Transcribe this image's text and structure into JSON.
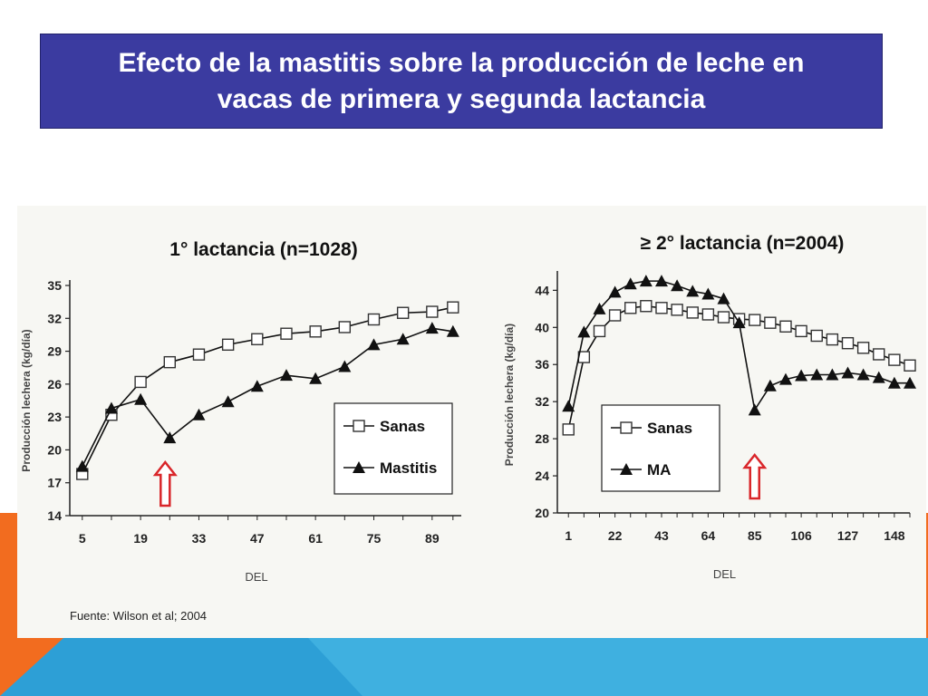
{
  "slide": {
    "title": "Efecto de la mastitis sobre la producción de leche en\nvacas de primera y segunda lactancia",
    "colors": {
      "title_bg": "#3b3ba0",
      "accent_orange": "#f26c1f",
      "accent_blue": "#2d9fd6",
      "arrow_red": "#d9262a"
    }
  },
  "source": "Fuente: Wilson et al; 2004",
  "chart_data": [
    {
      "type": "line",
      "title": "1° lactancia (n=1028)",
      "ylabel": "Producción lechera (kg/día)",
      "xlabel": "DEL",
      "ylim": [
        14,
        35
      ],
      "yticks": [
        14,
        17,
        20,
        23,
        26,
        29,
        32,
        35
      ],
      "xticks": [
        5,
        19,
        33,
        47,
        61,
        75,
        89
      ],
      "xlim": [
        2,
        96
      ],
      "legend_position": "bottom-right",
      "annotation": "red arrow at DEL 26",
      "series": [
        {
          "name": "Sanas",
          "marker": "square",
          "x": [
            5,
            12,
            19,
            26,
            33,
            40,
            47,
            54,
            61,
            68,
            75,
            82,
            89,
            94
          ],
          "y": [
            17.8,
            23.2,
            26.2,
            28,
            28.7,
            29.6,
            30.1,
            30.6,
            30.8,
            31.2,
            31.9,
            32.5,
            32.6,
            33
          ]
        },
        {
          "name": "Mastitis",
          "marker": "triangle",
          "x": [
            5,
            12,
            19,
            26,
            33,
            40,
            47,
            54,
            61,
            68,
            75,
            82,
            89,
            94
          ],
          "y": [
            18.5,
            23.8,
            24.6,
            21.1,
            23.2,
            24.4,
            25.8,
            26.8,
            26.5,
            27.6,
            29.6,
            30.1,
            31.1,
            30.8
          ]
        }
      ]
    },
    {
      "type": "line",
      "title": "≥ 2° lactancia (n=2004)",
      "ylabel": "Producción lechera (kg/día)",
      "xlabel": "DEL",
      "ylim": [
        20,
        45.5
      ],
      "yticks": [
        20,
        24,
        28,
        32,
        36,
        40,
        44
      ],
      "xticks": [
        1,
        22,
        43,
        64,
        85,
        106,
        127,
        148
      ],
      "xlim": [
        -4,
        155
      ],
      "legend_position": "bottom-left",
      "annotation": "red arrow at DEL 85",
      "series": [
        {
          "name": "Sanas",
          "marker": "square",
          "x": [
            1,
            8,
            15,
            22,
            29,
            36,
            43,
            50,
            57,
            64,
            71,
            78,
            85,
            92,
            99,
            106,
            113,
            120,
            127,
            134,
            141,
            148,
            155
          ],
          "y": [
            29,
            36.8,
            39.6,
            41.3,
            42.1,
            42.3,
            42.1,
            41.9,
            41.6,
            41.4,
            41.1,
            40.9,
            40.8,
            40.5,
            40.1,
            39.6,
            39.1,
            38.7,
            38.3,
            37.8,
            37.1,
            36.5,
            35.9
          ]
        },
        {
          "name": "MA",
          "marker": "triangle",
          "x": [
            1,
            8,
            15,
            22,
            29,
            36,
            43,
            50,
            57,
            64,
            71,
            78,
            85,
            92,
            99,
            106,
            113,
            120,
            127,
            134,
            141,
            148,
            155
          ],
          "y": [
            31.5,
            39.5,
            42,
            43.8,
            44.7,
            45,
            45,
            44.5,
            43.9,
            43.6,
            43.1,
            40.5,
            31.1,
            33.7,
            34.4,
            34.8,
            34.9,
            34.9,
            35.1,
            34.9,
            34.6,
            34,
            34
          ]
        }
      ]
    }
  ]
}
